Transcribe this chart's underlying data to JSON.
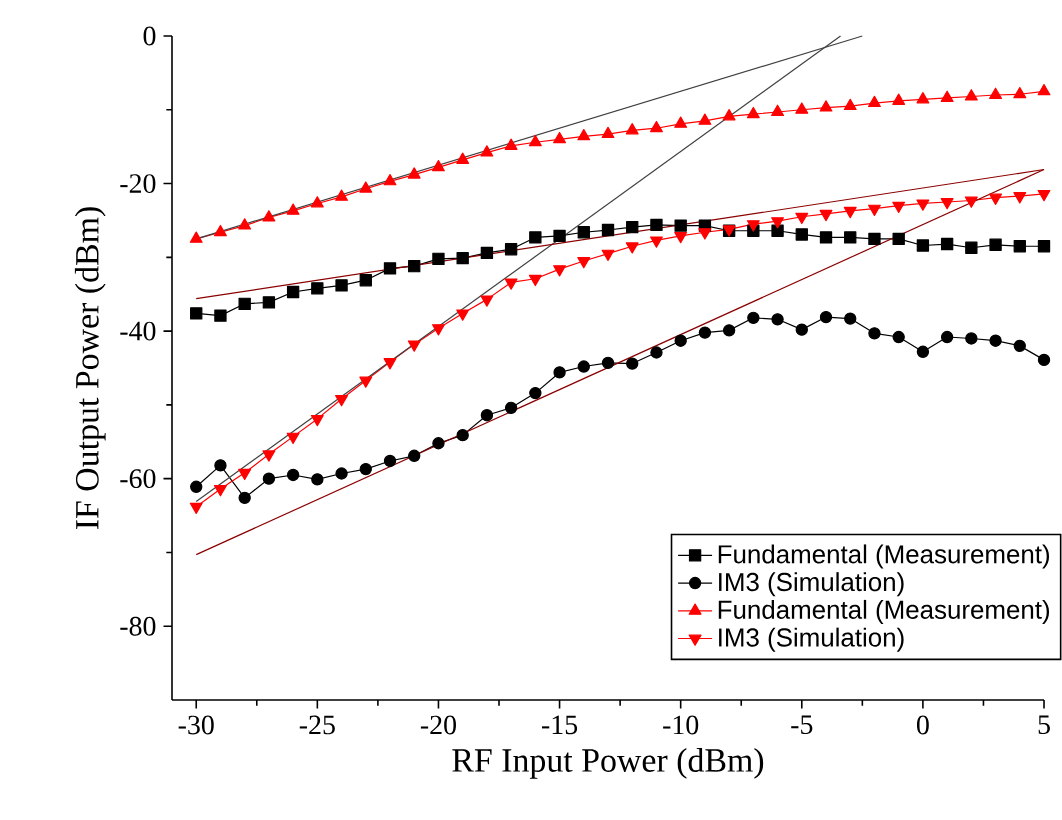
{
  "chart_data": {
    "type": "line",
    "xlabel": "RF Input Power (dBm)",
    "ylabel": "IF Output Power (dBm)",
    "xlim": [
      -31,
      5
    ],
    "ylim": [
      -90,
      0
    ],
    "xticks": [
      -30,
      -25,
      -20,
      -15,
      -10,
      -5,
      0,
      5
    ],
    "yticks": [
      -80,
      -60,
      -40,
      -20,
      0
    ],
    "grid": false,
    "legend": "bottom right",
    "line_style": "solid",
    "x": [
      -30,
      -29,
      -28,
      -27,
      -26,
      -25,
      -24,
      -23,
      -22,
      -21,
      -20,
      -19,
      -18,
      -17,
      -16,
      -15,
      -14,
      -13,
      -12,
      -11,
      -10,
      -9,
      -8,
      -7,
      -6,
      -5,
      -4,
      -3,
      -2,
      -1,
      0,
      1,
      2,
      3,
      4,
      5
    ],
    "series": [
      {
        "name": "Fundamental (Measurement)",
        "color": "#000000",
        "marker": "square",
        "values": [
          -37.6,
          -37.9,
          -36.3,
          -36.1,
          -34.7,
          -34.2,
          -33.8,
          -33.1,
          -31.5,
          -31.2,
          -30.2,
          -30.1,
          -29.4,
          -28.9,
          -27.3,
          -27.1,
          -26.6,
          -26.3,
          -25.9,
          -25.6,
          -25.7,
          -25.7,
          -26.4,
          -26.4,
          -26.4,
          -26.9,
          -27.3,
          -27.3,
          -27.5,
          -27.5,
          -28.4,
          -28.2,
          -28.7,
          -28.3,
          -28.5,
          -28.5
        ]
      },
      {
        "name": "IM3 (Simulation)",
        "color": "#000000",
        "marker": "circle",
        "values": [
          -61.1,
          -58.2,
          -62.6,
          -60.0,
          -59.5,
          -60.1,
          -59.3,
          -58.7,
          -57.6,
          -56.9,
          -55.2,
          -54.1,
          -51.4,
          -50.4,
          -48.4,
          -45.6,
          -44.8,
          -44.3,
          -44.4,
          -42.9,
          -41.3,
          -40.2,
          -39.9,
          -38.2,
          -38.4,
          -39.8,
          -38.1,
          -38.3,
          -40.3,
          -40.8,
          -42.8,
          -40.8,
          -41.0,
          -41.3,
          -42.0,
          -43.9
        ]
      },
      {
        "name": "Fundamental (Measurement)",
        "color": "#ff0000",
        "marker": "triangle",
        "values": [
          -27.5,
          -26.6,
          -25.7,
          -24.6,
          -23.7,
          -22.7,
          -21.8,
          -20.7,
          -19.7,
          -18.8,
          -17.8,
          -16.8,
          -15.8,
          -14.9,
          -14.4,
          -14.0,
          -13.6,
          -13.3,
          -12.8,
          -12.5,
          -11.9,
          -11.5,
          -10.9,
          -10.6,
          -10.3,
          -10.0,
          -9.7,
          -9.5,
          -9.1,
          -8.8,
          -8.6,
          -8.4,
          -8.2,
          -8.0,
          -7.9,
          -7.5
        ]
      },
      {
        "name": "IM3 (Simulation)",
        "color": "#ff0000",
        "marker": "triangle-down",
        "values": [
          -63.8,
          -61.4,
          -59.2,
          -56.7,
          -54.3,
          -51.9,
          -49.2,
          -46.7,
          -44.2,
          -41.8,
          -39.6,
          -37.6,
          -35.7,
          -33.4,
          -32.9,
          -31.6,
          -30.5,
          -29.5,
          -28.5,
          -27.7,
          -27.1,
          -26.6,
          -26.2,
          -25.5,
          -25.1,
          -24.5,
          -24.1,
          -23.7,
          -23.4,
          -23.0,
          -22.7,
          -22.5,
          -22.3,
          -21.9,
          -21.7,
          -21.4
        ]
      },
      {
        "color": "#404040",
        "marker": "none",
        "x": [
          -30,
          -2.5
        ],
        "values": [
          -27.5,
          0
        ]
      },
      {
        "color": "#404040",
        "marker": "none",
        "x": [
          -30,
          -3.4
        ],
        "values": [
          -63.1,
          0
        ]
      },
      {
        "color": "#8b0000",
        "marker": "none",
        "x": [
          -30,
          5
        ],
        "values": [
          -35.6,
          -18.1
        ]
      },
      {
        "color": "#8b0000",
        "marker": "none",
        "x": [
          -30,
          5
        ],
        "values": [
          -70.3,
          -18.1
        ]
      }
    ]
  }
}
